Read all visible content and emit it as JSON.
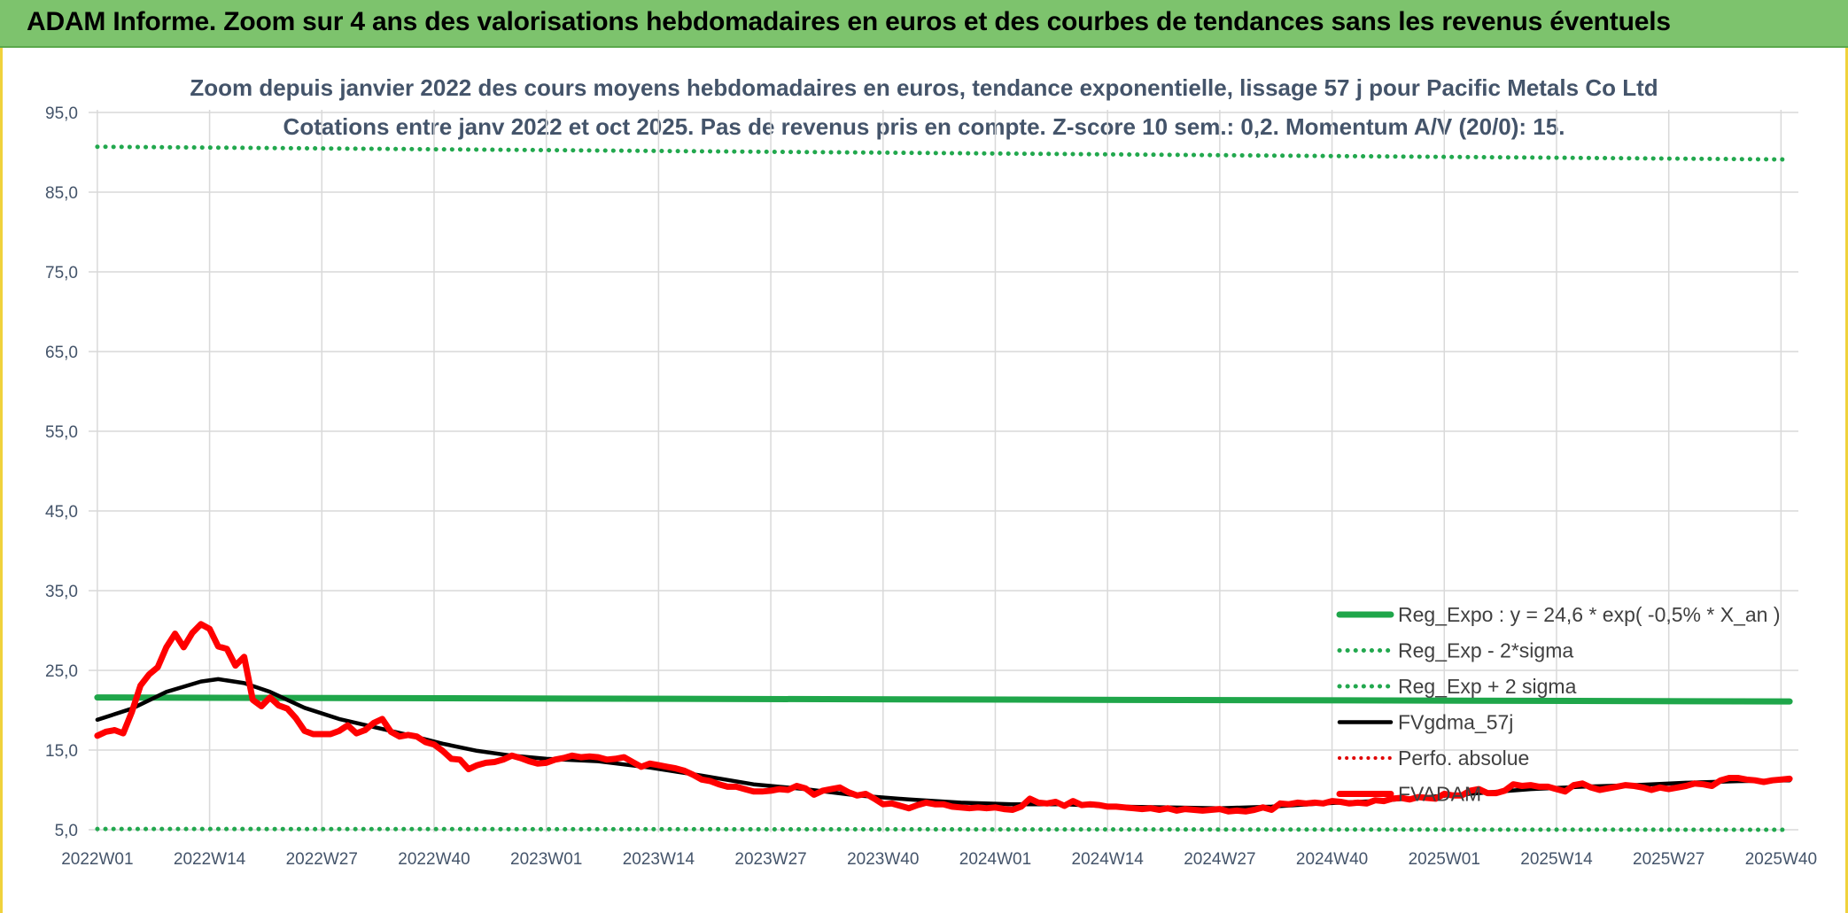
{
  "header": {
    "title": "ADAM Informe. Zoom sur 4 ans des valorisations hebdomadaires en euros et des courbes de tendances sans les revenus éventuels"
  },
  "colors": {
    "header_bg": "#7dc36d",
    "reg_expo": "#1fa64a",
    "sigma": "#22a84e",
    "fvgdma": "#000000",
    "perfo": "#e00000",
    "fvadam": "#ff0000",
    "frame": "#f0d23c"
  },
  "chart_data": {
    "type": "line",
    "subtitle_line1": "Zoom depuis janvier 2022 des cours moyens hebdomadaires en euros, tendance exponentielle, lissage 57 j pour Pacific Metals Co Ltd",
    "subtitle_line2": "Cotations entre janv 2022 et oct 2025. Pas de revenus pris en compte. Z-score 10 sem.: 0,2. Momentum A/V (20/0): 15.",
    "ylim": [
      5,
      95
    ],
    "yticks": [
      "95,0",
      "85,0",
      "75,0",
      "65,0",
      "55,0",
      "45,0",
      "35,0",
      "25,0",
      "15,0",
      "5,0"
    ],
    "yticks_values": [
      95,
      85,
      75,
      65,
      55,
      45,
      35,
      25,
      15,
      5
    ],
    "x_count": 197,
    "xtick_labels": [
      "2022W01",
      "2022W14",
      "2022W27",
      "2022W40",
      "2023W01",
      "2023W14",
      "2023W27",
      "2023W40",
      "2024W01",
      "2024W14",
      "2024W27",
      "2024W40",
      "2025W01",
      "2025W14",
      "2025W27",
      "2025W40"
    ],
    "xtick_index": [
      0,
      13,
      26,
      39,
      52,
      65,
      78,
      91,
      104,
      117,
      130,
      143,
      156,
      169,
      182,
      195
    ],
    "grid": true,
    "legend_position": "bottom-right",
    "series": [
      {
        "name": "Reg_Expo : y = 24,6 * exp( -0,5% *  X_an )",
        "style": "solid-thick",
        "points": [
          [
            0,
            21.6
          ],
          [
            196,
            21.1
          ]
        ]
      },
      {
        "name": "Reg_Exp - 2*sigma",
        "style": "dotted",
        "points": [
          [
            0,
            5.1
          ],
          [
            196,
            5.0
          ]
        ]
      },
      {
        "name": "Reg_Exp + 2 sigma",
        "style": "dotted",
        "points": [
          [
            0,
            90.7
          ],
          [
            196,
            89.1
          ]
        ]
      },
      {
        "name": "FVgdma_57j",
        "style": "solid",
        "points": [
          [
            0,
            18.8
          ],
          [
            4,
            20.2
          ],
          [
            8,
            22.3
          ],
          [
            12,
            23.6
          ],
          [
            14,
            23.9
          ],
          [
            17,
            23.4
          ],
          [
            20,
            22.3
          ],
          [
            24,
            20.3
          ],
          [
            28,
            18.9
          ],
          [
            32,
            17.9
          ],
          [
            36,
            16.9
          ],
          [
            40,
            15.8
          ],
          [
            44,
            14.9
          ],
          [
            48,
            14.3
          ],
          [
            52,
            13.9
          ],
          [
            58,
            13.6
          ],
          [
            64,
            12.8
          ],
          [
            70,
            11.8
          ],
          [
            76,
            10.7
          ],
          [
            82,
            10.1
          ],
          [
            88,
            9.3
          ],
          [
            94,
            8.8
          ],
          [
            100,
            8.4
          ],
          [
            106,
            8.2
          ],
          [
            112,
            8.2
          ],
          [
            118,
            7.9
          ],
          [
            124,
            7.8
          ],
          [
            130,
            7.7
          ],
          [
            136,
            7.9
          ],
          [
            142,
            8.3
          ],
          [
            148,
            8.6
          ],
          [
            154,
            9.1
          ],
          [
            160,
            9.6
          ],
          [
            166,
            10.1
          ],
          [
            172,
            10.4
          ],
          [
            178,
            10.6
          ],
          [
            184,
            10.9
          ],
          [
            190,
            11.1
          ],
          [
            196,
            11.2
          ]
        ]
      },
      {
        "name": "Perfo. absolue",
        "style": "dotted",
        "points": []
      },
      {
        "name": "FVADAM",
        "style": "solid-thick",
        "points": [
          [
            0,
            16.8
          ],
          [
            1,
            17.3
          ],
          [
            2,
            17.5
          ],
          [
            3,
            17.1
          ],
          [
            4,
            19.8
          ],
          [
            5,
            23.1
          ],
          [
            6,
            24.5
          ],
          [
            7,
            25.4
          ],
          [
            8,
            27.9
          ],
          [
            9,
            29.6
          ],
          [
            10,
            27.9
          ],
          [
            11,
            29.7
          ],
          [
            12,
            30.8
          ],
          [
            13,
            30.2
          ],
          [
            14,
            28.0
          ],
          [
            15,
            27.7
          ],
          [
            16,
            25.6
          ],
          [
            17,
            26.7
          ],
          [
            18,
            21.3
          ],
          [
            19,
            20.5
          ],
          [
            20,
            21.6
          ],
          [
            21,
            20.6
          ],
          [
            22,
            20.2
          ],
          [
            23,
            19.0
          ],
          [
            24,
            17.4
          ],
          [
            25,
            17.0
          ],
          [
            26,
            17.0
          ],
          [
            27,
            17.0
          ],
          [
            28,
            17.4
          ],
          [
            29,
            18.1
          ],
          [
            30,
            17.1
          ],
          [
            31,
            17.5
          ],
          [
            32,
            18.4
          ],
          [
            33,
            18.9
          ],
          [
            34,
            17.3
          ],
          [
            35,
            16.7
          ],
          [
            36,
            16.9
          ],
          [
            37,
            16.7
          ],
          [
            38,
            16.0
          ],
          [
            39,
            15.7
          ],
          [
            40,
            14.9
          ],
          [
            41,
            13.9
          ],
          [
            42,
            13.8
          ],
          [
            43,
            12.6
          ],
          [
            44,
            13.1
          ],
          [
            45,
            13.4
          ],
          [
            46,
            13.5
          ],
          [
            47,
            13.8
          ],
          [
            48,
            14.3
          ],
          [
            49,
            14.0
          ],
          [
            50,
            13.6
          ],
          [
            51,
            13.3
          ],
          [
            52,
            13.4
          ],
          [
            53,
            13.8
          ],
          [
            54,
            14.0
          ],
          [
            55,
            14.3
          ],
          [
            56,
            14.1
          ],
          [
            57,
            14.2
          ],
          [
            58,
            14.1
          ],
          [
            59,
            13.8
          ],
          [
            60,
            13.9
          ],
          [
            61,
            14.1
          ],
          [
            62,
            13.5
          ],
          [
            63,
            12.9
          ],
          [
            64,
            13.3
          ],
          [
            65,
            13.1
          ],
          [
            66,
            12.9
          ],
          [
            67,
            12.7
          ],
          [
            68,
            12.4
          ],
          [
            69,
            11.9
          ],
          [
            70,
            11.3
          ],
          [
            71,
            11.1
          ],
          [
            72,
            10.7
          ],
          [
            73,
            10.4
          ],
          [
            74,
            10.4
          ],
          [
            75,
            10.1
          ],
          [
            76,
            9.8
          ],
          [
            77,
            9.8
          ],
          [
            78,
            9.9
          ],
          [
            79,
            10.1
          ],
          [
            80,
            10.0
          ],
          [
            81,
            10.5
          ],
          [
            82,
            10.2
          ],
          [
            83,
            9.4
          ],
          [
            84,
            9.9
          ],
          [
            85,
            10.1
          ],
          [
            86,
            10.3
          ],
          [
            87,
            9.7
          ],
          [
            88,
            9.3
          ],
          [
            89,
            9.5
          ],
          [
            90,
            8.9
          ],
          [
            91,
            8.2
          ],
          [
            92,
            8.3
          ],
          [
            93,
            8.0
          ],
          [
            94,
            7.7
          ],
          [
            95,
            8.1
          ],
          [
            96,
            8.4
          ],
          [
            97,
            8.2
          ],
          [
            98,
            8.2
          ],
          [
            99,
            7.9
          ],
          [
            100,
            7.8
          ],
          [
            101,
            7.7
          ],
          [
            102,
            7.8
          ],
          [
            103,
            7.7
          ],
          [
            104,
            7.8
          ],
          [
            105,
            7.6
          ],
          [
            106,
            7.5
          ],
          [
            107,
            7.9
          ],
          [
            108,
            8.9
          ],
          [
            109,
            8.4
          ],
          [
            110,
            8.3
          ],
          [
            111,
            8.5
          ],
          [
            112,
            8.0
          ],
          [
            113,
            8.6
          ],
          [
            114,
            8.1
          ],
          [
            115,
            8.2
          ],
          [
            116,
            8.1
          ],
          [
            117,
            7.9
          ],
          [
            118,
            7.9
          ],
          [
            119,
            7.8
          ],
          [
            120,
            7.7
          ],
          [
            121,
            7.6
          ],
          [
            122,
            7.7
          ],
          [
            123,
            7.5
          ],
          [
            124,
            7.7
          ],
          [
            125,
            7.4
          ],
          [
            126,
            7.6
          ],
          [
            127,
            7.5
          ],
          [
            128,
            7.4
          ],
          [
            129,
            7.5
          ],
          [
            130,
            7.6
          ],
          [
            131,
            7.3
          ],
          [
            132,
            7.4
          ],
          [
            133,
            7.3
          ],
          [
            134,
            7.5
          ],
          [
            135,
            7.8
          ],
          [
            136,
            7.5
          ],
          [
            137,
            8.3
          ],
          [
            138,
            8.2
          ],
          [
            139,
            8.4
          ],
          [
            140,
            8.3
          ],
          [
            141,
            8.4
          ],
          [
            142,
            8.3
          ],
          [
            143,
            8.6
          ],
          [
            144,
            8.5
          ],
          [
            145,
            8.3
          ],
          [
            146,
            8.4
          ],
          [
            147,
            8.3
          ],
          [
            148,
            8.7
          ],
          [
            149,
            8.6
          ],
          [
            150,
            8.9
          ],
          [
            151,
            9.0
          ],
          [
            152,
            8.8
          ],
          [
            153,
            9.1
          ],
          [
            154,
            9.0
          ],
          [
            155,
            8.9
          ],
          [
            156,
            9.5
          ],
          [
            157,
            9.3
          ],
          [
            158,
            9.3
          ],
          [
            159,
            9.9
          ],
          [
            160,
            10.1
          ],
          [
            161,
            9.6
          ],
          [
            162,
            9.6
          ],
          [
            163,
            9.9
          ],
          [
            164,
            10.7
          ],
          [
            165,
            10.5
          ],
          [
            166,
            10.6
          ],
          [
            167,
            10.4
          ],
          [
            168,
            10.4
          ],
          [
            169,
            10.1
          ],
          [
            170,
            9.8
          ],
          [
            171,
            10.6
          ],
          [
            172,
            10.8
          ],
          [
            173,
            10.3
          ],
          [
            174,
            10.0
          ],
          [
            175,
            10.2
          ],
          [
            176,
            10.4
          ],
          [
            177,
            10.6
          ],
          [
            178,
            10.5
          ],
          [
            179,
            10.3
          ],
          [
            180,
            10.0
          ],
          [
            181,
            10.3
          ],
          [
            182,
            10.1
          ],
          [
            183,
            10.3
          ],
          [
            184,
            10.5
          ],
          [
            185,
            10.8
          ],
          [
            186,
            10.7
          ],
          [
            187,
            10.5
          ],
          [
            188,
            11.2
          ],
          [
            189,
            11.5
          ],
          [
            190,
            11.5
          ],
          [
            191,
            11.3
          ],
          [
            192,
            11.2
          ],
          [
            193,
            11.0
          ],
          [
            194,
            11.2
          ],
          [
            195,
            11.3
          ],
          [
            196,
            11.4
          ]
        ]
      }
    ]
  }
}
